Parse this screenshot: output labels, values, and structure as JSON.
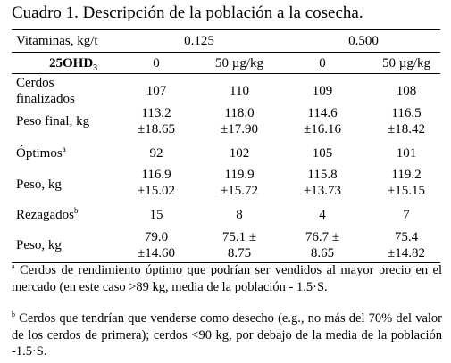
{
  "title": "Cuadro 1. Descripción de la población a la cosecha.",
  "header": {
    "vitaminas_label": "Vitaminas, kg/t",
    "vit_0125": "0.125",
    "vit_0500": "0.500",
    "ohd_label": "25OHD",
    "ohd_sub": "3",
    "doses": [
      "0",
      "50 µg/kg",
      "0",
      "50 µg/kg"
    ]
  },
  "rows": [
    {
      "label_line1": "Cerdos",
      "label_line2": "finalizados",
      "values": [
        "107",
        "110",
        "109",
        "108"
      ]
    },
    {
      "label": "Peso final, kg",
      "values_top": [
        "113.2",
        "118.0",
        "114.6",
        "116.5"
      ],
      "values_bottom": [
        "±18.65",
        "±17.90",
        "±16.16",
        "±18.42"
      ]
    },
    {
      "label": "Óptimos",
      "sup": "a",
      "values": [
        "92",
        "102",
        "105",
        "101"
      ]
    },
    {
      "label": "Peso, kg",
      "values_top": [
        "116.9",
        "119.9",
        "115.8",
        "119.2"
      ],
      "values_bottom": [
        "±15.02",
        "±15.72",
        "±13.73",
        "±15.15"
      ]
    },
    {
      "label": "Rezagados",
      "sup": "b",
      "values": [
        "15",
        "8",
        "4",
        "7"
      ]
    },
    {
      "label": "Peso, kg",
      "values_top": [
        "79.0",
        "75.1 ±",
        "76.7 ±",
        "75.4"
      ],
      "values_bottom": [
        "±14.60",
        "8.75",
        "8.65",
        "±14.82"
      ]
    }
  ],
  "footnotes": {
    "a_mark": "a",
    "a_text": "Cerdos de rendimiento óptimo que podrían ser vendidos al mayor precio en el mercado (en este caso >89 kg, media de la población - 1.5·S.",
    "b_mark": "b",
    "b_text": "Cerdos que tendrían que venderse como desecho (e.g., no más del 70% del valor de los cerdos de primera); cerdos <90 kg, por debajo de la media de la población -1.5·S."
  }
}
